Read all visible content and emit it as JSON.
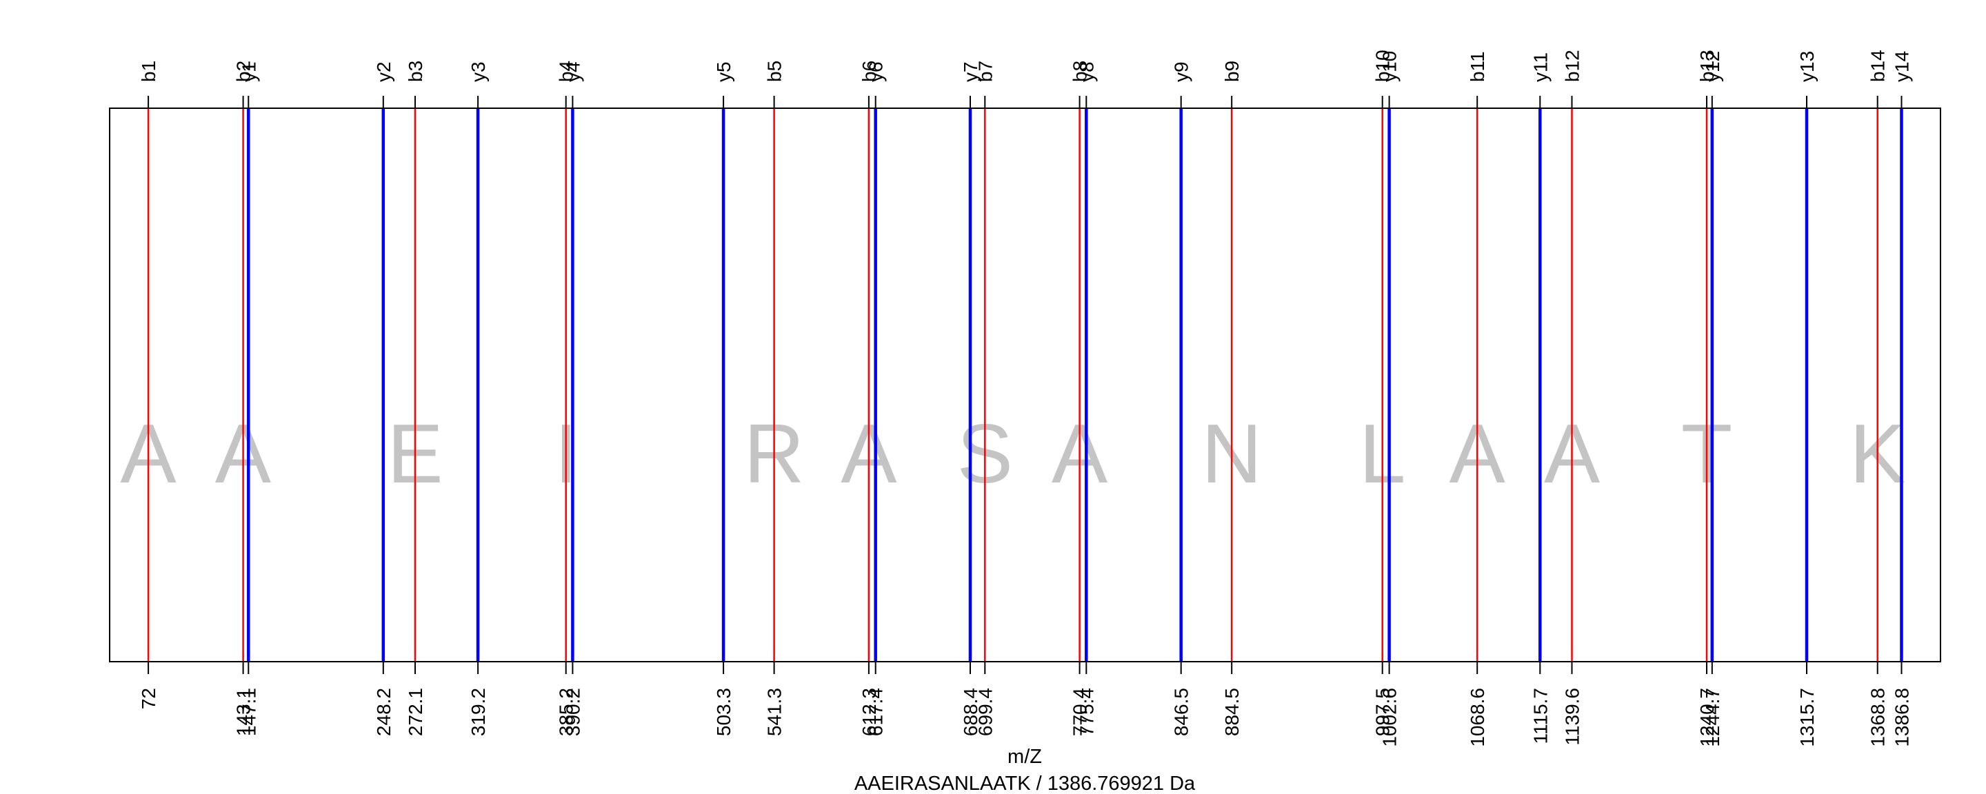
{
  "chart_data": {
    "type": "line",
    "title": "",
    "xlabel": "m/Z",
    "subtitle": "AAEIRASANLAATK / 1386.769921 Da",
    "peptide": "AAEIRASANLAATK",
    "xlim": [
      43,
      1416
    ],
    "residues": [
      "A",
      "A",
      "E",
      "I",
      "R",
      "A",
      "S",
      "A",
      "N",
      "L",
      "A",
      "A",
      "T",
      "K"
    ],
    "residue_positions": [
      72,
      143,
      272.1,
      385.2,
      541.3,
      612.3,
      699.4,
      770.4,
      884.5,
      997.5,
      1068.6,
      1139.6,
      1240.7,
      1368.8
    ],
    "series": [
      {
        "name": "b",
        "color": "#ff0000",
        "labels": [
          "b1",
          "b2",
          "b3",
          "b4",
          "b5",
          "b6",
          "b7",
          "b8",
          "b9",
          "b10",
          "b11",
          "b12",
          "b13",
          "b14"
        ],
        "values": [
          72,
          143.1,
          272.1,
          385.2,
          541.3,
          612.3,
          699.4,
          770.4,
          884.5,
          997.5,
          1068.6,
          1139.6,
          1240.7,
          1368.8
        ],
        "value_labels": [
          "72",
          "143.1",
          "272.1",
          "385.2",
          "541.3",
          "612.3",
          "699.4",
          "770.4",
          "884.5",
          "997.5",
          "1068.6",
          "1139.6",
          "1240.7",
          "1368.8"
        ]
      },
      {
        "name": "y",
        "color": "#0000ff",
        "labels": [
          "y1",
          "y2",
          "y3",
          "y4",
          "y5",
          "y6",
          "y7",
          "y8",
          "y9",
          "y10",
          "y11",
          "y12",
          "y13",
          "y14"
        ],
        "values": [
          147.1,
          248.2,
          319.2,
          390.2,
          503.3,
          617.4,
          688.4,
          775.4,
          846.5,
          1002.6,
          1115.7,
          1244.7,
          1315.7,
          1386.8
        ],
        "value_labels": [
          "147.1",
          "248.2",
          "319.2",
          "390.2",
          "503.3",
          "617.4",
          "688.4",
          "775.4",
          "846.5",
          "1002.6",
          "1115.7",
          "1244.7",
          "1315.7",
          "1386.8"
        ]
      }
    ]
  }
}
